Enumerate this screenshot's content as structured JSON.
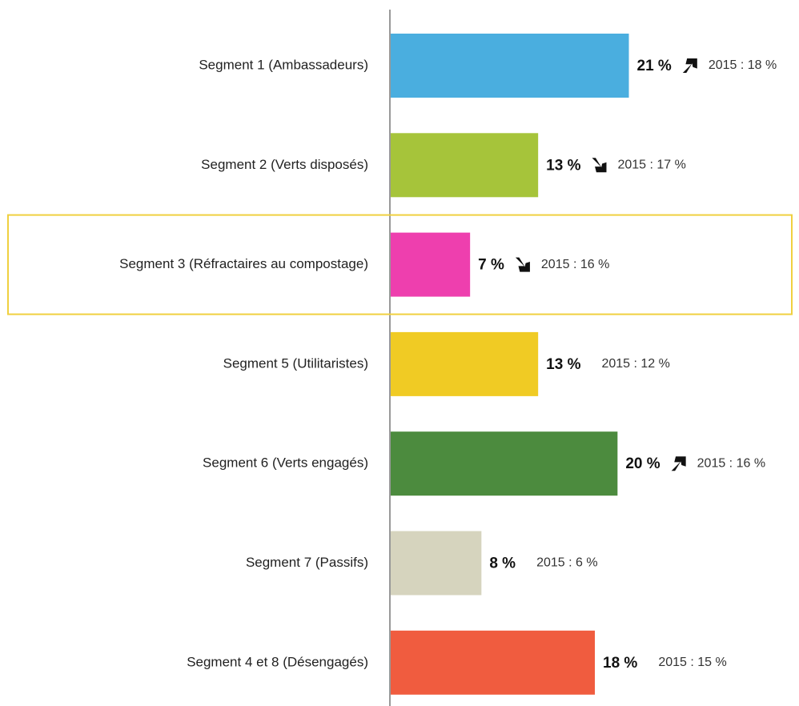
{
  "chart_data": {
    "type": "hbar",
    "categories": [
      "Segment 1 (Ambassadeurs)",
      "Segment 2 (Verts disposés)",
      "Segment 3 (Réfractaires au compostage)",
      "Segment 5 (Utilitaristes)",
      "Segment 6 (Verts engagés)",
      "Segment 7 (Passifs)",
      "Segment 4 et 8 (Désengagés)"
    ],
    "values": [
      21,
      13,
      7,
      13,
      20,
      8,
      18
    ],
    "value_labels": [
      "21 %",
      "13 %",
      "7 %",
      "13 %",
      "20 %",
      "8 %",
      "18 %"
    ],
    "comparisons": [
      "2015 : 18 %",
      "2015 : 17 %",
      "2015 : 16 %",
      "2015 : 12 %",
      "2015 : 16 %",
      "2015 : 6 %",
      "2015 : 15 %"
    ],
    "trend": [
      "up",
      "down",
      "down",
      null,
      "up",
      null,
      null
    ],
    "colors": [
      "#4aaedf",
      "#a6c43a",
      "#ee3fae",
      "#f0cb24",
      "#4c8b3e",
      "#d6d4be",
      "#f05c3f"
    ],
    "highlight": 2,
    "xlim": [
      0,
      36
    ]
  }
}
